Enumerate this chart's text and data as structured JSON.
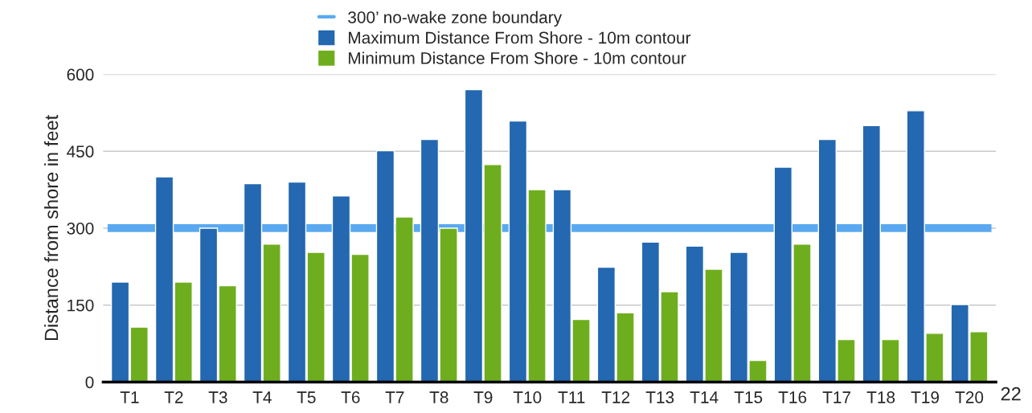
{
  "chart_data": {
    "type": "bar",
    "ylabel": "Distance from shore in feet",
    "categories": [
      "T1",
      "T2",
      "T3",
      "T4",
      "T5",
      "T6",
      "T7",
      "T8",
      "T9",
      "T10",
      "T11",
      "T12",
      "T13",
      "T14",
      "T15",
      "T16",
      "T17",
      "T18",
      "T19",
      "T20"
    ],
    "series": [
      {
        "name": "Maximum Distance From Shore - 10m contour",
        "color": "#2368b0",
        "values": [
          195,
          400,
          300,
          387,
          390,
          363,
          451,
          473,
          570,
          509,
          375,
          224,
          273,
          265,
          253,
          419,
          473,
          500,
          529,
          151
        ]
      },
      {
        "name": "Minimum Distance From Shore - 10m contour",
        "color": "#6eae1e",
        "values": [
          107,
          195,
          188,
          269,
          253,
          249,
          322,
          300,
          424,
          375,
          122,
          135,
          176,
          220,
          42,
          269,
          83,
          83,
          95,
          98
        ]
      }
    ],
    "ref_lines": [
      {
        "axis": "y",
        "value": 300,
        "label": "300’ no-wake zone boundary",
        "color": "#5aa9f0"
      }
    ],
    "ylim": [
      0,
      600
    ],
    "yticks": [
      0,
      150,
      300,
      450,
      600
    ],
    "grid": "y",
    "legend": "top",
    "annotations": [
      "22"
    ]
  }
}
